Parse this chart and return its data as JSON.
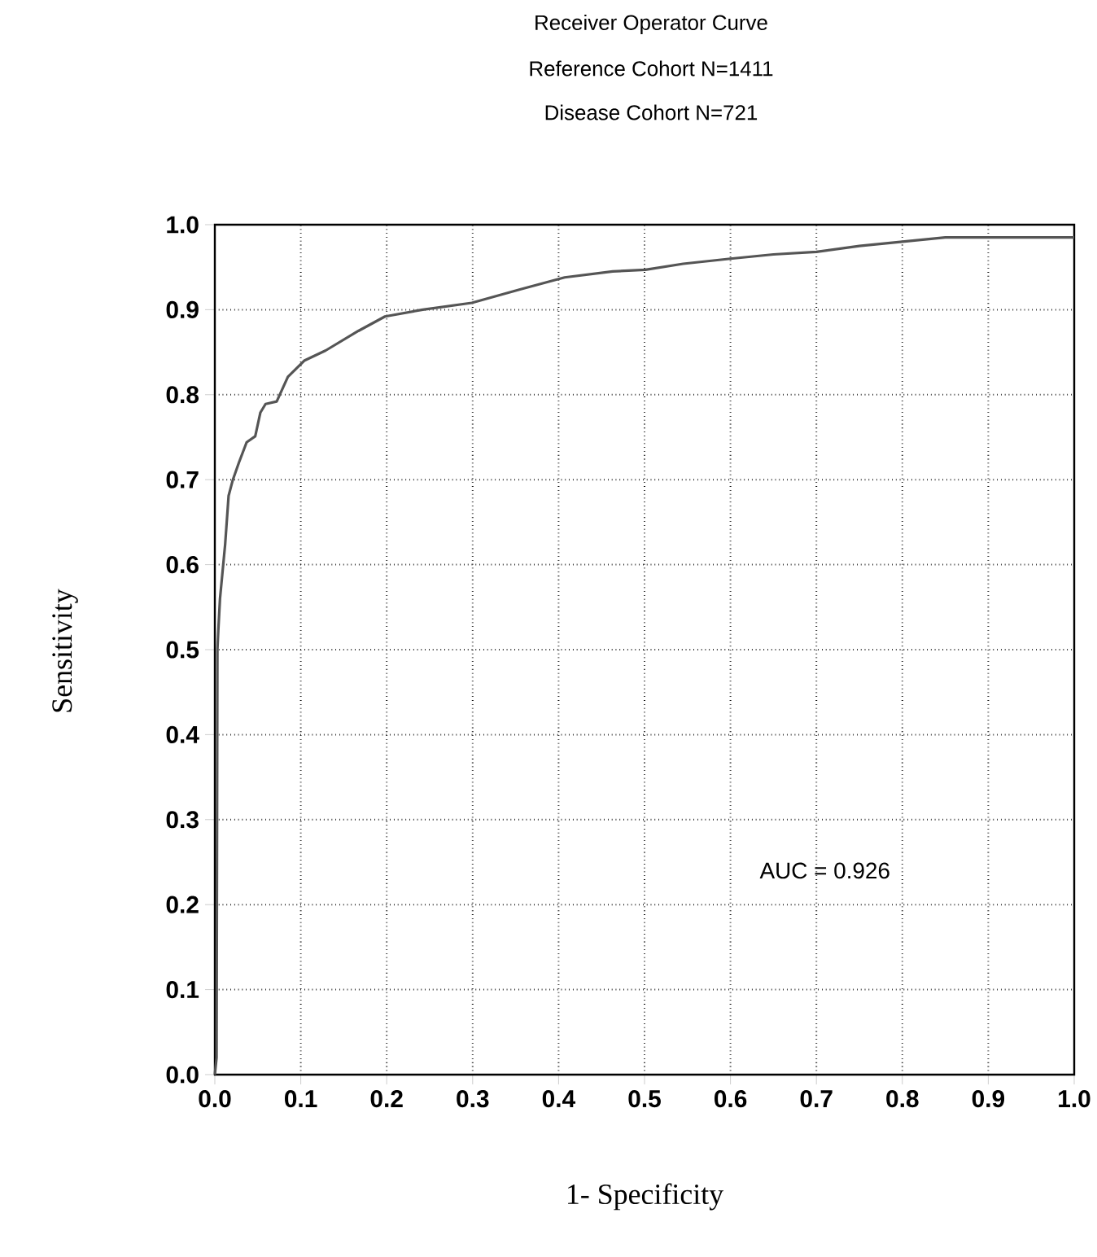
{
  "chart_data": {
    "type": "line",
    "title": "Receiver Operator Curve",
    "subtitle": "Reference Cohort N=1411",
    "annotations": [
      "Disease Cohort N=721",
      "AUC = 0.926"
    ],
    "xlabel": "1- Specificity",
    "ylabel": "Sensitivity",
    "xlim": [
      0,
      1
    ],
    "ylim": [
      0,
      1
    ],
    "xticks": [
      {
        "value": 0,
        "label": "0.0"
      },
      0.1,
      0.2,
      0.3,
      0.4,
      0.5,
      0.6,
      0.7,
      0.8,
      0.9,
      {
        "value": 1,
        "label": "1.0"
      }
    ],
    "yticks": [
      {
        "value": 0,
        "label": "0.0"
      },
      0.1,
      0.2,
      0.3,
      0.4,
      0.5,
      0.6,
      0.7,
      0.8,
      0.9,
      {
        "value": 1,
        "label": "1.0"
      }
    ],
    "grid": true,
    "marker": "none",
    "line_style": "solid",
    "series": [
      {
        "color": "#555555",
        "x": [
          0,
          0.002,
          0.003,
          0.004,
          0.006,
          0.012,
          0.016,
          0.021,
          0.028,
          0.037,
          0.047,
          0.053,
          0.059,
          0.072,
          0.085,
          0.104,
          0.129,
          0.167,
          0.198,
          0.242,
          0.299,
          0.356,
          0.407,
          0.463,
          0.501,
          0.545,
          0.6,
          0.65,
          0.7,
          0.75,
          0.8,
          0.85,
          0.9,
          1.0
        ],
        "values": [
          0,
          0.02,
          0.5,
          0.522,
          0.56,
          0.624,
          0.681,
          0.7,
          0.72,
          0.744,
          0.751,
          0.779,
          0.789,
          0.792,
          0.821,
          0.84,
          0.852,
          0.875,
          0.892,
          0.9,
          0.908,
          0.924,
          0.938,
          0.945,
          0.947,
          0.954,
          0.96,
          0.965,
          0.968,
          0.975,
          0.98,
          0.985,
          0.985,
          0.985
        ]
      }
    ]
  }
}
